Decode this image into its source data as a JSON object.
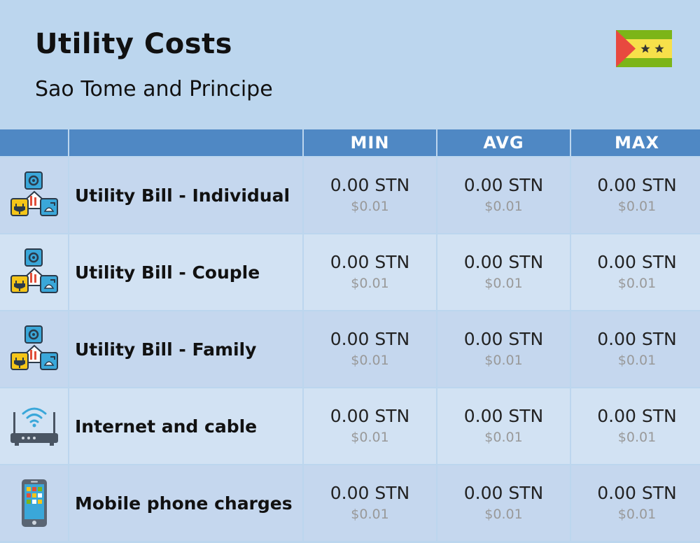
{
  "header": {
    "title": "Utility Costs",
    "subtitle": "Sao Tome and Principe"
  },
  "flag": {
    "icon": "sao-tome-flag-icon",
    "colors": {
      "green": "#7cb518",
      "yellow": "#f7e04a",
      "red": "#e8493f",
      "star": "#333333"
    }
  },
  "table": {
    "columns": [
      "",
      "",
      "MIN",
      "AVG",
      "MAX"
    ],
    "rows": [
      {
        "label": "Utility Bill - Individual",
        "icon": "utility-bill-icon",
        "min": "0.00 STN",
        "min_usd": "$0.01",
        "avg": "0.00 STN",
        "avg_usd": "$0.01",
        "max": "0.00 STN",
        "max_usd": "$0.01"
      },
      {
        "label": "Utility Bill - Couple",
        "icon": "utility-bill-icon",
        "min": "0.00 STN",
        "min_usd": "$0.01",
        "avg": "0.00 STN",
        "avg_usd": "$0.01",
        "max": "0.00 STN",
        "max_usd": "$0.01"
      },
      {
        "label": "Utility Bill - Family",
        "icon": "utility-bill-icon",
        "min": "0.00 STN",
        "min_usd": "$0.01",
        "avg": "0.00 STN",
        "avg_usd": "$0.01",
        "max": "0.00 STN",
        "max_usd": "$0.01"
      },
      {
        "label": "Internet and cable",
        "icon": "wifi-router-icon",
        "min": "0.00 STN",
        "min_usd": "$0.01",
        "avg": "0.00 STN",
        "avg_usd": "$0.01",
        "max": "0.00 STN",
        "max_usd": "$0.01"
      },
      {
        "label": "Mobile phone charges",
        "icon": "mobile-phone-icon",
        "min": "0.00 STN",
        "min_usd": "$0.01",
        "avg": "0.00 STN",
        "avg_usd": "$0.01",
        "max": "0.00 STN",
        "max_usd": "$0.01"
      }
    ]
  }
}
